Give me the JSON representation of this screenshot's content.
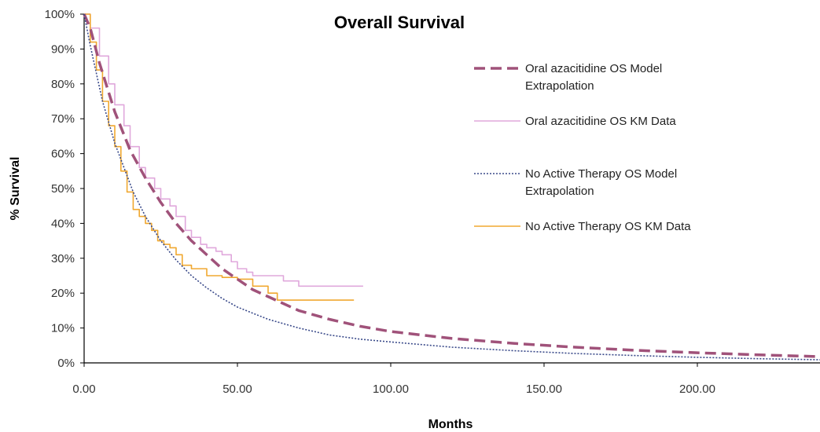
{
  "chart_data": {
    "type": "line",
    "title": "Overall Survival",
    "xlabel": "Months",
    "ylabel": "% Survival",
    "xlim": [
      0,
      240
    ],
    "ylim": [
      0,
      100
    ],
    "x_ticks": [
      0,
      50,
      100,
      150,
      200
    ],
    "x_tick_labels": [
      "0.00",
      "50.00",
      "100.00",
      "150.00",
      "200.00"
    ],
    "y_ticks": [
      0,
      10,
      20,
      30,
      40,
      50,
      60,
      70,
      80,
      90,
      100
    ],
    "y_tick_labels": [
      "0%",
      "10%",
      "20%",
      "30%",
      "40%",
      "50%",
      "60%",
      "70%",
      "80%",
      "90%",
      "100%"
    ],
    "grid": false,
    "legend_position": "right",
    "series": [
      {
        "name": "Oral azacitidine OS Model Extrapolation",
        "style": "dashed",
        "color": "#A0527A",
        "x": [
          0,
          2,
          5,
          10,
          15,
          20,
          25,
          30,
          35,
          40,
          45,
          50,
          55,
          60,
          70,
          80,
          90,
          100,
          120,
          140,
          160,
          180,
          200,
          220,
          240
        ],
        "y": [
          100,
          96,
          86,
          72,
          61,
          53,
          46,
          40,
          35,
          31,
          27,
          24,
          21,
          19,
          15,
          12.5,
          10.5,
          9,
          7,
          5.6,
          4.5,
          3.6,
          2.9,
          2.3,
          1.8
        ]
      },
      {
        "name": "Oral azacitidine OS KM Data",
        "style": "solid",
        "color": "#E0A8DC",
        "x": [
          0,
          2,
          5,
          8,
          10,
          13,
          15,
          18,
          20,
          23,
          25,
          28,
          30,
          33,
          35,
          38,
          40,
          43,
          45,
          48,
          50,
          53,
          55,
          58,
          60,
          63,
          65,
          68,
          70,
          75,
          80,
          85,
          91
        ],
        "y": [
          100,
          96,
          88,
          80,
          74,
          68,
          62,
          56,
          53,
          50,
          47,
          45,
          42,
          38,
          36,
          34,
          33,
          32,
          31,
          29,
          27,
          26,
          25,
          25,
          25,
          25,
          23.5,
          23.5,
          22,
          22,
          22,
          22,
          22
        ]
      },
      {
        "name": "No Active Therapy OS Model Extrapolation",
        "style": "dotted",
        "color": "#3A4A8A",
        "x": [
          0,
          2,
          4,
          6,
          8,
          10,
          13,
          16,
          20,
          25,
          30,
          35,
          40,
          45,
          50,
          60,
          70,
          80,
          90,
          100,
          120,
          140,
          160,
          180,
          200,
          220,
          240
        ],
        "y": [
          100,
          91,
          83,
          75,
          69,
          63,
          56,
          49,
          42,
          35,
          29.5,
          25,
          21.5,
          18.5,
          16,
          12.5,
          10,
          8,
          6.8,
          6,
          4.5,
          3.5,
          2.7,
          2.1,
          1.6,
          1.2,
          0.9
        ]
      },
      {
        "name": "No Active Therapy OS KM Data",
        "style": "solid",
        "color": "#F0A830",
        "x": [
          0,
          2,
          4,
          6,
          8,
          10,
          12,
          14,
          16,
          18,
          20,
          22,
          24,
          26,
          28,
          30,
          32,
          35,
          40,
          45,
          50,
          55,
          60,
          63,
          65,
          70,
          75,
          80,
          88
        ],
        "y": [
          100,
          92,
          84,
          75,
          68,
          62,
          55,
          49,
          44,
          42,
          40,
          38,
          35,
          34,
          33,
          31,
          28,
          27,
          25,
          24.5,
          24,
          22,
          20,
          18,
          18,
          18,
          18,
          18,
          18
        ]
      }
    ]
  }
}
